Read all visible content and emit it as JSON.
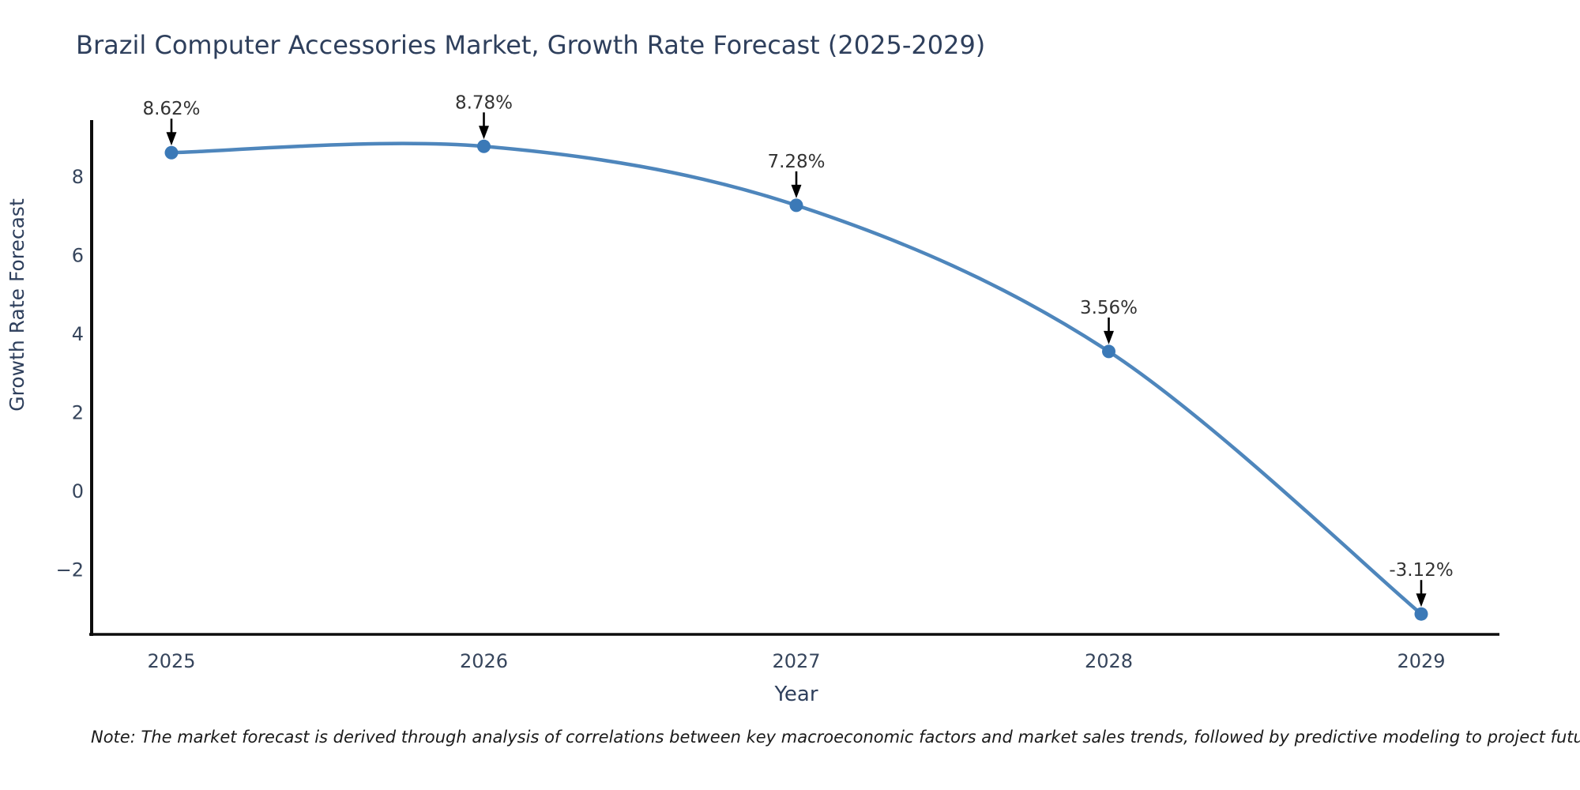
{
  "chart": {
    "title": "Brazil Computer Accessories Market, Growth Rate Forecast (2025-2029)",
    "note": "Note: The market forecast is derived through analysis of correlations between key macroeconomic factors and market sales trends, followed by predictive modeling to project future sales",
    "colors": {
      "line": "#4e86bc",
      "marker": "#3b79b7",
      "heading_text": "#2e3f5c",
      "tick_text": "#36455c",
      "annotation_text": "#333333",
      "annotation_arrow": "#000000",
      "axis": "#0d0d0d",
      "background": "#ffffff"
    }
  },
  "chart_data": {
    "type": "line",
    "title": "Brazil Computer Accessories Market, Growth Rate Forecast (2025-2029)",
    "xlabel": "Year",
    "ylabel": "Growth Rate Forecast",
    "categories": [
      "2025",
      "2026",
      "2027",
      "2028",
      "2029"
    ],
    "values": [
      8.62,
      8.78,
      7.28,
      3.56,
      -3.12
    ],
    "point_labels": [
      "8.62%",
      "8.78%",
      "7.28%",
      "3.56%",
      "-3.12%"
    ],
    "ytick_labels": [
      "8",
      "6",
      "4",
      "2",
      "0",
      "−2"
    ],
    "ytick_values": [
      8,
      6,
      4,
      2,
      0,
      -2
    ],
    "ylim": [
      -3.7,
      9.4
    ],
    "grid": false,
    "legend": "none",
    "line_shape": "spline",
    "annotation_style": "value label above each point with black down arrow"
  }
}
